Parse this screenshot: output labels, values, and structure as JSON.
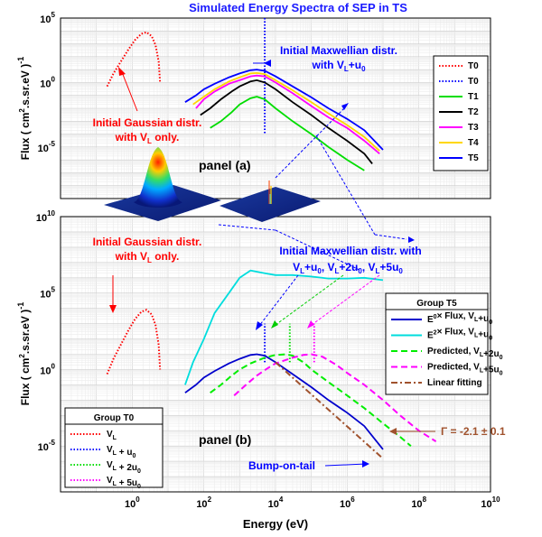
{
  "figure": {
    "title": "Simulated Energy Spectra of SEP in TS",
    "xlabel": "Energy (eV)",
    "ylabel_top": "Flux  ( cm",
    "ylabel_bottom": "Flux  ( cm"
  },
  "chart_data": [
    {
      "type": "line",
      "panel_label": "panel (a)",
      "xscale": "log",
      "yscale": "log",
      "xlim": [
        0.01,
        10000000000.0
      ],
      "ylim": [
        1e-09,
        100000.0
      ],
      "x_ticks": [
        "10^0",
        "10^2",
        "10^4",
        "10^6",
        "10^8",
        "10^10"
      ],
      "y_ticks": [
        "10^5",
        "10^0",
        "10^-5"
      ],
      "legend_position": "top-right",
      "legend": [
        "T0",
        "T0",
        "T1",
        "T2",
        "T3",
        "T4",
        "T5"
      ],
      "series": [
        {
          "name": "T0",
          "color": "#ff0000",
          "style": "dotted",
          "x": [
            0.2,
            0.3,
            0.5,
            0.8,
            1.2,
            1.8,
            2.5,
            3.5,
            4.5,
            5.5,
            6
          ],
          "y": [
            0.5,
            5,
            50,
            400,
            2000,
            6000,
            8000,
            4000,
            800,
            40,
            1
          ]
        },
        {
          "name": "T0",
          "color": "#0000ff",
          "style": "dotted",
          "x": [
            5000,
            5000
          ],
          "y": [
            100000,
            0.0001
          ]
        },
        {
          "name": "T1",
          "color": "#00dd00",
          "style": "solid",
          "x": [
            150,
            300,
            600,
            1000,
            2000,
            3000,
            5000,
            10000,
            30000,
            100000,
            300000,
            1000000,
            3000000
          ],
          "y": [
            0.0003,
            0.001,
            0.005,
            0.02,
            0.06,
            0.08,
            0.05,
            0.01,
            0.001,
            0.0001,
            1e-05,
            1e-06,
            1.5e-07
          ]
        },
        {
          "name": "T2",
          "color": "#000000",
          "style": "solid",
          "x": [
            80,
            150,
            300,
            600,
            1000,
            2000,
            3000,
            5000,
            10000,
            30000,
            100000,
            300000,
            1000000,
            3000000,
            5000000
          ],
          "y": [
            0.003,
            0.01,
            0.05,
            0.2,
            0.5,
            1.2,
            1.5,
            1,
            0.3,
            0.03,
            0.003,
            0.0003,
            3e-05,
            3e-06,
            5e-07
          ]
        },
        {
          "name": "T3",
          "color": "#ff00ff",
          "style": "solid",
          "x": [
            60,
            100,
            200,
            500,
            1000,
            2000,
            3000,
            5000,
            10000,
            30000,
            100000,
            300000,
            1000000,
            3000000,
            8000000
          ],
          "y": [
            0.01,
            0.05,
            0.2,
            0.8,
            1.5,
            3,
            3.5,
            3,
            1,
            0.15,
            0.015,
            0.002,
            0.0003,
            3e-05,
            3e-06
          ]
        },
        {
          "name": "T4",
          "color": "#ffd700",
          "style": "solid",
          "x": [
            50,
            100,
            200,
            500,
            1000,
            2000,
            3000,
            5000,
            10000,
            30000,
            100000,
            300000,
            1000000,
            3000000,
            8000000
          ],
          "y": [
            0.02,
            0.08,
            0.3,
            1.2,
            2.5,
            5,
            5.5,
            4.5,
            1.5,
            0.25,
            0.03,
            0.004,
            0.0005,
            6e-05,
            5e-06
          ]
        },
        {
          "name": "T5",
          "color": "#0000ff",
          "style": "solid",
          "x": [
            30,
            60,
            100,
            200,
            500,
            1000,
            2000,
            3000,
            5000,
            10000,
            30000,
            100000,
            300000,
            1000000,
            3000000,
            10000000
          ],
          "y": [
            0.03,
            0.1,
            0.3,
            0.8,
            2.5,
            5,
            9,
            10,
            8,
            3,
            0.5,
            0.07,
            0.01,
            0.0015,
            0.0002,
            6e-06
          ]
        }
      ],
      "annotations": [
        {
          "text": "Initial Maxwellian distr.",
          "text2": "with V",
          "sub": "L",
          "text3": "+u",
          "sub2": "0",
          "color": "#0000ff"
        },
        {
          "text": "Initial Gaussian distr.",
          "text2": "with V",
          "sub": "L",
          "text3": " only.",
          "color": "#ff0000"
        }
      ]
    },
    {
      "type": "line",
      "panel_label": "panel (b)",
      "xscale": "log",
      "yscale": "log",
      "xlim": [
        0.01,
        10000000000.0
      ],
      "ylim": [
        1e-08,
        10000000000.0
      ],
      "x_ticks": [
        "10^0",
        "10^2",
        "10^4",
        "10^6",
        "10^8",
        "10^10"
      ],
      "y_ticks": [
        "10^10",
        "10^5",
        "10^0",
        "10^-5"
      ],
      "legends": [
        {
          "title": "Group T0",
          "position": "bottom-left",
          "entries": [
            "V_L",
            "V_L + u_0",
            "V_L + 2u_0",
            "V_L + 5u_0"
          ]
        },
        {
          "title": "Group T5",
          "position": "right",
          "entries": [
            "E^0× Flux,  V_L+u_0",
            "E^2× Flux,  V_L+u_0",
            "Predicted, V_L+2u_0",
            "Predicted, V_L+5u_0",
            "Linear fitting"
          ]
        }
      ],
      "series": [
        {
          "name": "V_L",
          "color": "#ff0000",
          "style": "dotted",
          "x": [
            0.2,
            0.3,
            0.5,
            0.8,
            1.2,
            1.8,
            2.5,
            3.5,
            4.5,
            5.5,
            6
          ],
          "y": [
            0.5,
            5,
            50,
            400,
            2000,
            6000,
            8000,
            4000,
            800,
            40,
            1
          ]
        },
        {
          "name": "V_L + u_0",
          "color": "#0000ff",
          "style": "dotted",
          "x": [
            5000,
            5000
          ],
          "y": [
            3,
            1000
          ]
        },
        {
          "name": "V_L + 2u_0",
          "color": "#00dd00",
          "style": "dotted",
          "x": [
            25000,
            25000
          ],
          "y": [
            3,
            1000
          ]
        },
        {
          "name": "V_L + 5u_0",
          "color": "#ff00ff",
          "style": "dotted",
          "x": [
            120000,
            120000
          ],
          "y": [
            3,
            1000
          ]
        },
        {
          "name": "E^0× Flux,  V_L+u_0",
          "color": "#0000cc",
          "style": "solid",
          "x": [
            30,
            60,
            100,
            200,
            500,
            1000,
            2000,
            3000,
            5000,
            10000,
            30000,
            100000,
            300000,
            1000000,
            3000000,
            10000000
          ],
          "y": [
            0.03,
            0.1,
            0.3,
            0.8,
            2.5,
            5,
            9,
            10,
            8,
            3,
            0.5,
            0.07,
            0.01,
            0.0015,
            0.0002,
            6e-06
          ]
        },
        {
          "name": "E^2× Flux,  V_L+u_0",
          "color": "#00dddd",
          "style": "solid",
          "x": [
            30,
            50,
            100,
            200,
            500,
            1000,
            2000,
            5000,
            10000,
            30000,
            100000,
            300000,
            1000000,
            3000000,
            10000000
          ],
          "y": [
            0.1,
            3,
            100,
            5000,
            100000,
            1000000,
            3000000,
            2000000,
            1500000,
            1500000,
            1200000,
            900000,
            900000,
            1000000,
            700000
          ]
        },
        {
          "name": "Predicted, V_L+2u_0",
          "color": "#00ee00",
          "style": "dashed",
          "x": [
            150,
            300,
            600,
            1000,
            2000,
            5000,
            10000,
            20000,
            30000,
            60000,
            100000,
            300000,
            1000000,
            3000000,
            10000000,
            30000000,
            60000000
          ],
          "y": [
            0.03,
            0.1,
            0.4,
            1,
            2.5,
            6,
            9,
            10,
            8,
            3,
            1,
            0.15,
            0.02,
            0.003,
            0.0003,
            4e-05,
            1e-05
          ]
        },
        {
          "name": "Predicted, V_L+5u_0",
          "color": "#ff00ff",
          "style": "dashed",
          "x": [
            700,
            1500,
            3000,
            6000,
            10000,
            30000,
            60000,
            100000,
            200000,
            500000,
            1000000,
            3000000,
            10000000,
            30000000,
            100000000,
            300000000
          ],
          "y": [
            0.02,
            0.1,
            0.4,
            1.2,
            2.5,
            6,
            9,
            10,
            7,
            2,
            0.6,
            0.1,
            0.01,
            0.001,
            0.0001,
            2e-05
          ]
        },
        {
          "name": "Linear fitting",
          "color": "#a0522d",
          "style": "dashdot",
          "x": [
            10000,
            10000000
          ],
          "y": [
            3,
            1.5e-06
          ]
        }
      ],
      "annotations": [
        {
          "text": "Initial Maxwellian distr. with",
          "color": "#0000ff"
        },
        {
          "text": "Initial Gaussian distr.",
          "text2": "with V",
          "sub": "L",
          "text3": " only.",
          "color": "#ff0000"
        },
        {
          "text": "Γ = -2.1 ± 0.1",
          "color": "#a0522d"
        },
        {
          "text": "Bump-on-tail",
          "color": "#0000ff"
        }
      ]
    }
  ]
}
